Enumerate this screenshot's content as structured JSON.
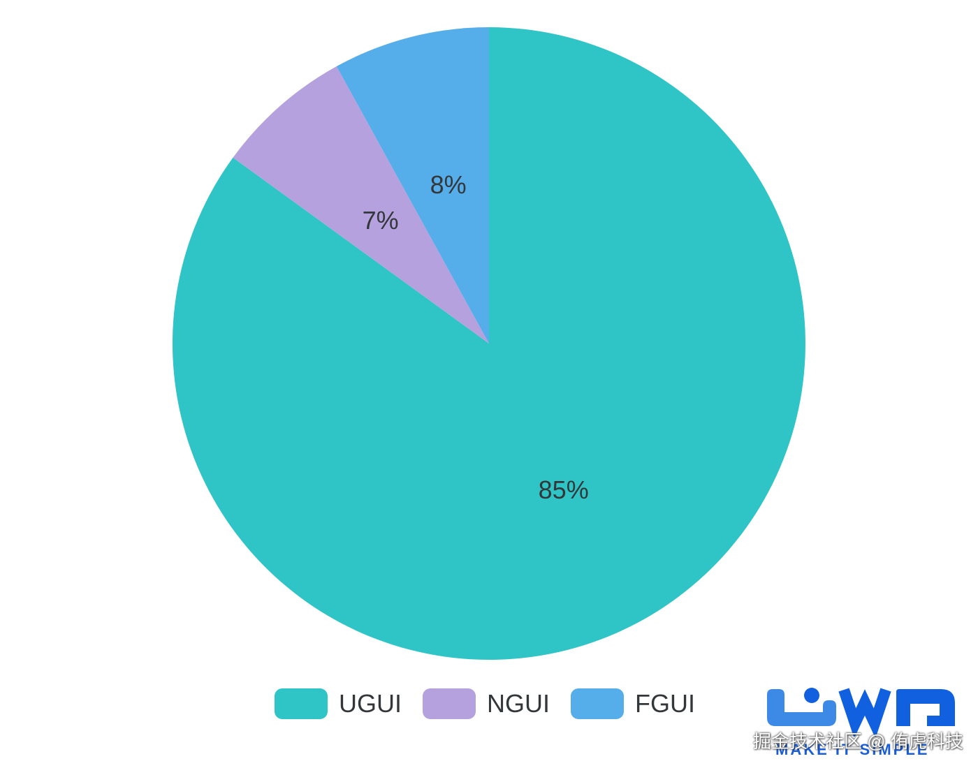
{
  "chart_data": {
    "type": "pie",
    "labels": [
      "UGUI",
      "NGUI",
      "FGUI"
    ],
    "values": [
      85,
      7,
      8
    ],
    "value_labels": [
      "85%",
      "7%",
      "8%"
    ],
    "colors": [
      "#2FC4C6",
      "#B4A1DD",
      "#55ADE9"
    ],
    "label_color": "#33373A",
    "start_angle": "12-oclock",
    "direction": "clockwise",
    "legend_position": "bottom-center"
  },
  "branding": {
    "logo_text": "UWA",
    "tagline": "MAKE IT SIMPLE",
    "colors": {
      "light": "#3C89E6",
      "dark": "#1060E0"
    }
  },
  "watermark": {
    "text": "掘金技术社区 @ 侑虎科技"
  }
}
